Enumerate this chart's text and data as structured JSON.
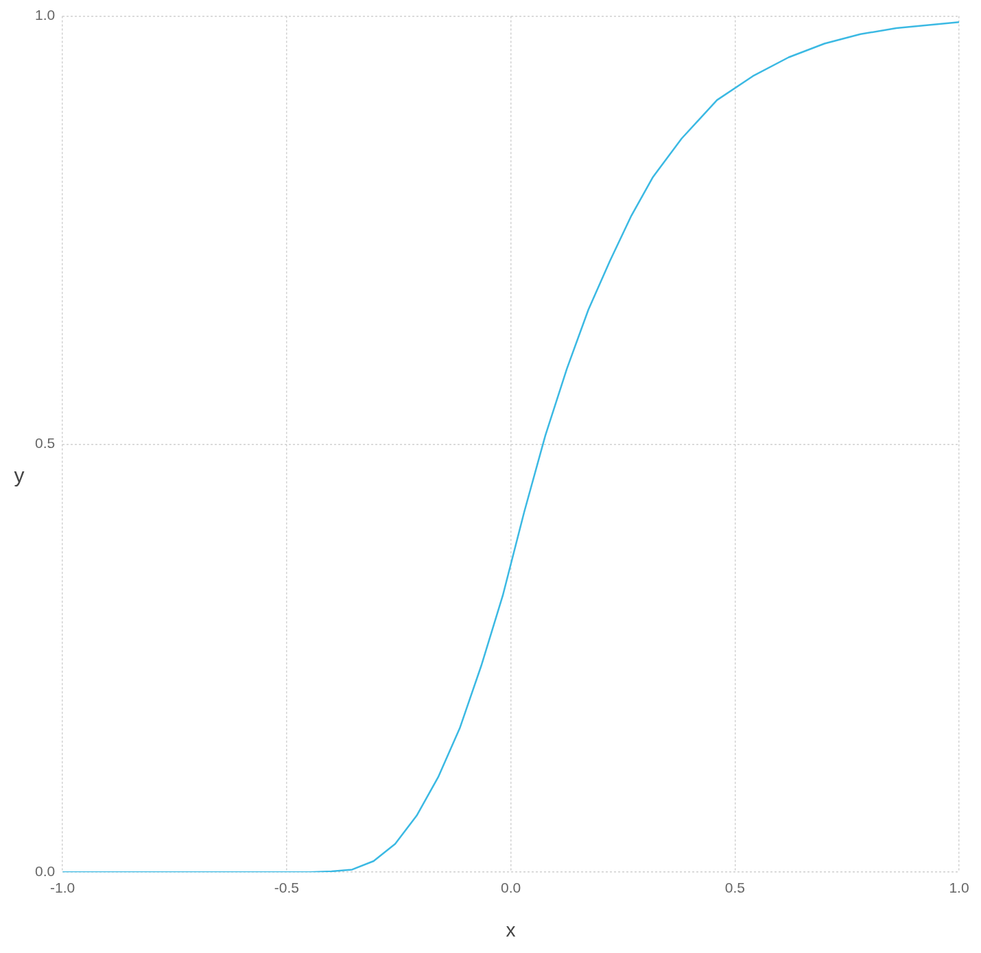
{
  "chart_data": {
    "type": "line",
    "xlabel": "x",
    "ylabel": "y",
    "x": [
      -1,
      -0.8,
      -0.6,
      -0.45,
      -0.4,
      -0.354,
      -0.306,
      -0.258,
      -0.21,
      -0.162,
      -0.114,
      -0.066,
      -0.018,
      0.03,
      0.077,
      0.125,
      0.173,
      0.221,
      0.269,
      0.317,
      0.381,
      0.46,
      0.54,
      0.62,
      0.7,
      0.78,
      0.86,
      1
    ],
    "series": [
      {
        "color": "#3bb9e3",
        "values": [
          0,
          0,
          0,
          0,
          0.001,
          0.003,
          0.013,
          0.033,
          0.066,
          0.111,
          0.168,
          0.241,
          0.323,
          0.421,
          0.51,
          0.588,
          0.657,
          0.714,
          0.767,
          0.812,
          0.857,
          0.902,
          0.93,
          0.952,
          0.968,
          0.979,
          0.986,
          0.993
        ]
      }
    ],
    "xlim": [
      -1,
      1
    ],
    "xticks": [
      {
        "value": -1,
        "label": "-1.0"
      },
      -0.5,
      {
        "value": 0,
        "label": "0.0"
      },
      0.5,
      {
        "value": 1,
        "label": "1.0"
      }
    ],
    "ylim": [
      0,
      1
    ],
    "yticks": [
      {
        "value": 0,
        "label": "0.0"
      },
      0.5,
      {
        "value": 1,
        "label": "1.0"
      }
    ],
    "grid": true,
    "legend": false,
    "marker": "none",
    "line_style": "solid"
  }
}
